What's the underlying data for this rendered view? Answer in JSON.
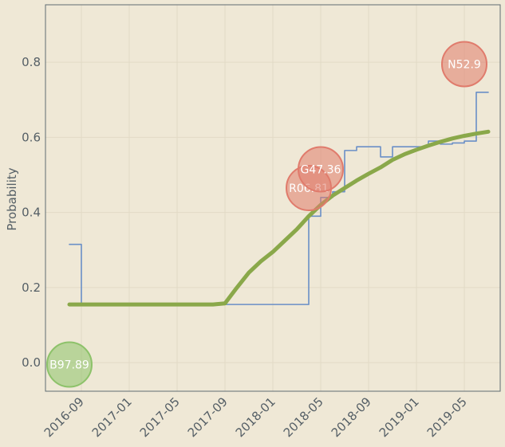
{
  "chart_data": {
    "type": "line",
    "y_label": "Probability",
    "xlim": [
      "2016-06",
      "2019-08"
    ],
    "xticks": [
      "2016-09",
      "2017-01",
      "2017-05",
      "2017-09",
      "2018-01",
      "2018-05",
      "2018-09",
      "2019-01",
      "2019-05"
    ],
    "ylim": [
      -0.076,
      0.953
    ],
    "yticks": [
      {
        "value": 0,
        "label": "0.0"
      },
      0.2,
      0.4,
      0.6,
      0.8
    ],
    "grid": true,
    "series": [
      {
        "color": "#6a8fc7",
        "step": true,
        "x": [
          "2016-08",
          "2016-09",
          "2018-04",
          "2018-05",
          "2018-06",
          "2018-07",
          "2018-08",
          "2018-10",
          "2018-11",
          "2019-02",
          "2019-03",
          "2019-04",
          "2019-05",
          "2019-06",
          "2019-07"
        ],
        "values": [
          0.315,
          0.155,
          0.39,
          0.44,
          0.455,
          0.565,
          0.575,
          0.548,
          0.575,
          0.59,
          0.582,
          0.585,
          0.59,
          0.72,
          0.72
        ]
      },
      {
        "color": "#8aa84a",
        "step": false,
        "x": [
          "2016-08",
          "2017-08",
          "2017-09",
          "2017-10",
          "2017-11",
          "2017-12",
          "2018-01",
          "2018-02",
          "2018-03",
          "2018-04",
          "2018-05",
          "2018-06",
          "2018-07",
          "2018-08",
          "2018-09",
          "2018-10",
          "2018-11",
          "2018-12",
          "2019-01",
          "2019-02",
          "2019-03",
          "2019-04",
          "2019-05",
          "2019-06",
          "2019-07"
        ],
        "values": [
          0.155,
          0.155,
          0.158,
          0.2,
          0.24,
          0.27,
          0.295,
          0.325,
          0.355,
          0.39,
          0.42,
          0.445,
          0.465,
          0.485,
          0.503,
          0.52,
          0.54,
          0.555,
          0.567,
          0.578,
          0.588,
          0.597,
          0.604,
          0.61,
          0.615
        ]
      }
    ],
    "annotations": [
      {
        "label": "B97.89",
        "x": "2016-08",
        "y": -0.005,
        "color": "#8dc26a"
      },
      {
        "label": "R06.81",
        "x": "2018-04",
        "y": 0.465,
        "color": "#e07b6c"
      },
      {
        "label": "G47.36",
        "x": "2018-05",
        "y": 0.515,
        "color": "#e07b6c"
      },
      {
        "label": "N52.9",
        "x": "2019-05",
        "y": 0.795,
        "color": "#e07b6c"
      }
    ]
  }
}
